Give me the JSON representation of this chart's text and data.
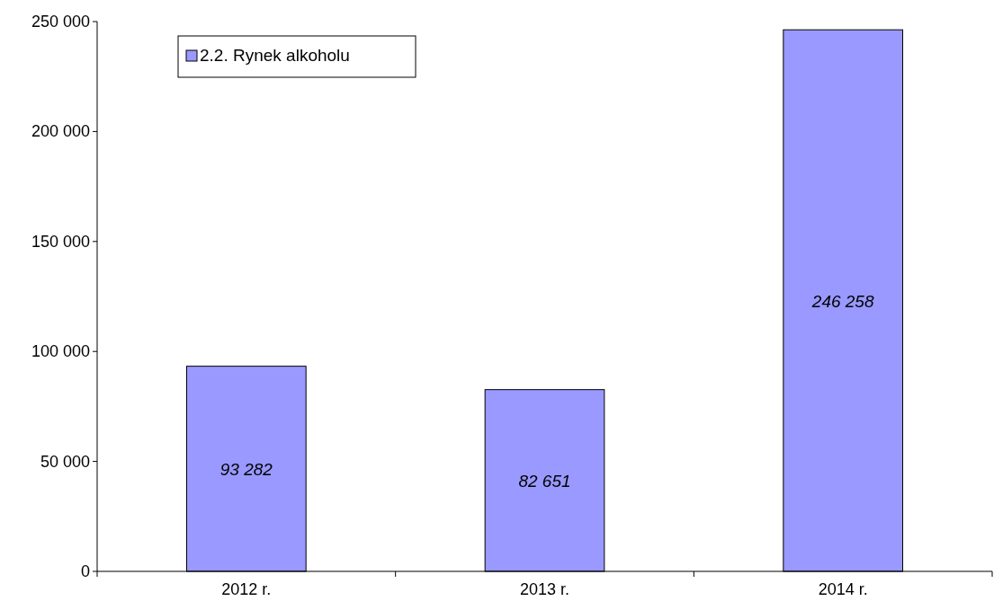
{
  "chart_data": {
    "type": "bar",
    "categories": [
      "2012 r.",
      "2013 r.",
      "2014 r."
    ],
    "series": [
      {
        "name": "2.2. Rynek alkoholu",
        "color": "#9999ff",
        "values": [
          93282,
          82651,
          246258
        ]
      }
    ],
    "ylim": [
      0,
      250000
    ],
    "yticks": [
      {
        "value": 0,
        "label": "0"
      },
      {
        "value": 50000,
        "label": "50 000"
      },
      {
        "value": 100000,
        "label": "100 000"
      },
      {
        "value": 150000,
        "label": "150 000"
      },
      {
        "value": 200000,
        "label": "200 000"
      },
      {
        "value": 250000,
        "label": "250 000"
      }
    ],
    "value_labels": [
      "93 282",
      "82 651",
      "246 258"
    ],
    "legend": "top left",
    "grid": false
  }
}
